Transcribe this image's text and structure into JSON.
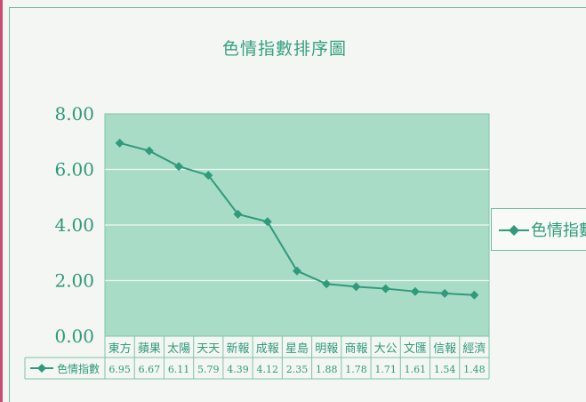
{
  "chart_data": {
    "type": "line",
    "title": "色情指數排序圖",
    "categories": [
      "東方",
      "蘋果",
      "太陽",
      "天天",
      "新報",
      "成報",
      "星島",
      "明報",
      "商報",
      "大公",
      "文匯",
      "信報",
      "經濟"
    ],
    "series": [
      {
        "name": "色情指數",
        "values": [
          6.95,
          6.67,
          6.11,
          5.79,
          4.39,
          4.12,
          2.35,
          1.88,
          1.78,
          1.71,
          1.61,
          1.54,
          1.48
        ],
        "value_labels": [
          "6.95",
          "6.67",
          "6.11",
          "5.79",
          "4.39",
          "4.12",
          "2.35",
          "1.88",
          "1.78",
          "1.71",
          "1.61",
          "1.54",
          "1.48"
        ]
      }
    ],
    "yticks": [
      "0.00",
      "2.00",
      "4.00",
      "6.00",
      "8.00"
    ],
    "ylim": [
      0,
      8
    ],
    "grid": true,
    "legend_position": "right",
    "data_table": true,
    "colors": {
      "line": "#2f9a7c",
      "plot_bg": "#a9dcc6",
      "grid": "#eef7f2",
      "text": "#2f9a7c"
    }
  }
}
